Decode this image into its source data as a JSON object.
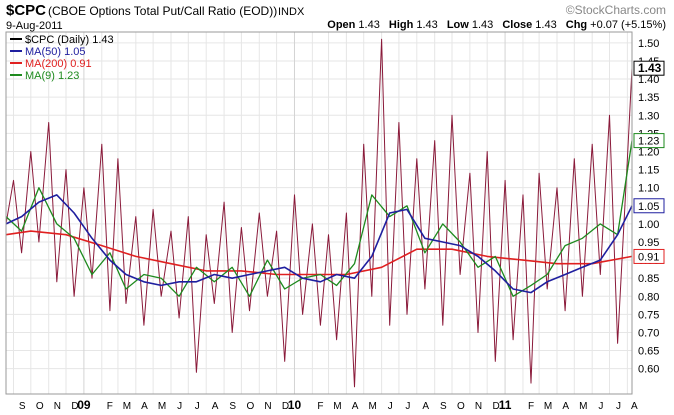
{
  "header": {
    "symbol": "$CPC",
    "description": "(CBOE Options Total Put/Call Ratio (EOD))",
    "exchange": "INDX",
    "date": "9-Aug-2011",
    "watermark": "©StockCharts.com",
    "quote": {
      "open_label": "Open",
      "open": "1.43",
      "high_label": "High",
      "high": "1.43",
      "low_label": "Low",
      "low": "1.43",
      "close_label": "Close",
      "close": "1.43",
      "chg_label": "Chg",
      "chg": "+0.07 (+5.15%)"
    }
  },
  "legend": [
    {
      "text": "$CPC (Daily) 1.43",
      "color": "#000000"
    },
    {
      "text": "MA(50) 1.05",
      "color": "#1f1f9f"
    },
    {
      "text": "MA(200) 0.91",
      "color": "#e02020"
    },
    {
      "text": "MA(9) 1.23",
      "color": "#1e8a1e"
    }
  ],
  "colors": {
    "daily": "#8a1a3a",
    "ma50": "#1f1f9f",
    "ma200": "#e02020",
    "ma9": "#1e8a1e",
    "grid": "#e6e6e6",
    "frame": "#9a9a9a"
  },
  "chart_data": {
    "type": "line",
    "ylim": [
      0.53,
      1.53
    ],
    "yticks": [
      "0.60",
      "0.65",
      "0.70",
      "0.75",
      "0.80",
      "0.85",
      "0.90",
      "0.95",
      "1.00",
      "1.05",
      "1.10",
      "1.15",
      "1.20",
      "1.25",
      "1.30",
      "1.35",
      "1.40",
      "1.45",
      "1.50"
    ],
    "x_range": [
      "2008-08-19",
      "2011-08-09"
    ],
    "x_labels": [
      {
        "label": "S",
        "date": "2008-09-01"
      },
      {
        "label": "O",
        "date": "2008-10-01"
      },
      {
        "label": "N",
        "date": "2008-11-01"
      },
      {
        "label": "D",
        "date": "2008-12-01"
      },
      {
        "label": "09",
        "date": "2009-01-01"
      },
      {
        "label": "F",
        "date": "2009-02-01"
      },
      {
        "label": "M",
        "date": "2009-03-01"
      },
      {
        "label": "A",
        "date": "2009-04-01"
      },
      {
        "label": "M",
        "date": "2009-05-01"
      },
      {
        "label": "J",
        "date": "2009-06-01"
      },
      {
        "label": "J",
        "date": "2009-07-01"
      },
      {
        "label": "A",
        "date": "2009-08-01"
      },
      {
        "label": "S",
        "date": "2009-09-01"
      },
      {
        "label": "O",
        "date": "2009-10-01"
      },
      {
        "label": "N",
        "date": "2009-11-01"
      },
      {
        "label": "D",
        "date": "2009-12-01"
      },
      {
        "label": "10",
        "date": "2010-01-01"
      },
      {
        "label": "F",
        "date": "2010-02-01"
      },
      {
        "label": "M",
        "date": "2010-03-01"
      },
      {
        "label": "A",
        "date": "2010-04-01"
      },
      {
        "label": "M",
        "date": "2010-05-01"
      },
      {
        "label": "J",
        "date": "2010-06-01"
      },
      {
        "label": "J",
        "date": "2010-07-01"
      },
      {
        "label": "A",
        "date": "2010-08-01"
      },
      {
        "label": "S",
        "date": "2010-09-01"
      },
      {
        "label": "O",
        "date": "2010-10-01"
      },
      {
        "label": "N",
        "date": "2010-11-01"
      },
      {
        "label": "D",
        "date": "2010-12-01"
      },
      {
        "label": "11",
        "date": "2011-01-01"
      },
      {
        "label": "F",
        "date": "2011-02-01"
      },
      {
        "label": "M",
        "date": "2011-03-01"
      },
      {
        "label": "A",
        "date": "2011-04-01"
      },
      {
        "label": "M",
        "date": "2011-05-01"
      },
      {
        "label": "J",
        "date": "2011-06-01"
      },
      {
        "label": "J",
        "date": "2011-07-01"
      },
      {
        "label": "A",
        "date": "2011-08-01"
      }
    ],
    "badges": [
      {
        "text": "1.43",
        "value": 1.43,
        "style": "bold"
      },
      {
        "text": "1.23",
        "value": 1.23,
        "style": "green"
      },
      {
        "text": "1.05",
        "value": 1.05,
        "style": "blue"
      },
      {
        "text": "0.91",
        "value": 0.91,
        "style": "red"
      }
    ],
    "series": [
      {
        "name": "$CPC (Daily)",
        "key": "daily",
        "x": [
          "2008-08-19",
          "2008-09-01",
          "2008-09-15",
          "2008-10-01",
          "2008-10-15",
          "2008-11-01",
          "2008-11-15",
          "2008-12-01",
          "2008-12-15",
          "2009-01-01",
          "2009-01-15",
          "2009-02-01",
          "2009-02-15",
          "2009-03-01",
          "2009-03-15",
          "2009-04-01",
          "2009-04-15",
          "2009-05-01",
          "2009-05-15",
          "2009-06-01",
          "2009-06-15",
          "2009-07-01",
          "2009-07-15",
          "2009-08-01",
          "2009-08-15",
          "2009-09-01",
          "2009-09-15",
          "2009-10-01",
          "2009-10-15",
          "2009-11-01",
          "2009-11-15",
          "2009-12-01",
          "2009-12-15",
          "2010-01-01",
          "2010-01-15",
          "2010-02-01",
          "2010-02-15",
          "2010-03-01",
          "2010-03-15",
          "2010-04-01",
          "2010-04-15",
          "2010-05-01",
          "2010-05-15",
          "2010-06-01",
          "2010-06-15",
          "2010-07-01",
          "2010-07-15",
          "2010-08-01",
          "2010-08-15",
          "2010-09-01",
          "2010-09-15",
          "2010-10-01",
          "2010-10-15",
          "2010-11-01",
          "2010-11-15",
          "2010-12-01",
          "2010-12-15",
          "2011-01-01",
          "2011-01-15",
          "2011-02-01",
          "2011-02-15",
          "2011-03-01",
          "2011-03-15",
          "2011-04-01",
          "2011-04-15",
          "2011-05-01",
          "2011-05-15",
          "2011-06-01",
          "2011-06-15",
          "2011-07-01",
          "2011-07-15",
          "2011-08-01",
          "2011-08-09"
        ],
        "values": [
          1.0,
          1.12,
          0.92,
          1.2,
          0.95,
          1.28,
          0.84,
          1.15,
          0.8,
          1.1,
          0.85,
          1.22,
          0.76,
          1.18,
          0.78,
          1.02,
          0.72,
          1.04,
          0.8,
          0.98,
          0.74,
          1.02,
          0.59,
          0.97,
          0.78,
          1.06,
          0.7,
          0.99,
          0.76,
          1.03,
          0.8,
          0.98,
          0.62,
          1.08,
          0.75,
          1.0,
          0.72,
          0.97,
          0.68,
          1.03,
          0.55,
          1.22,
          0.8,
          1.51,
          0.72,
          1.28,
          0.75,
          1.18,
          0.82,
          1.23,
          0.72,
          1.3,
          0.86,
          1.14,
          0.7,
          1.2,
          0.62,
          1.12,
          0.68,
          1.08,
          0.56,
          1.14,
          0.82,
          1.1,
          0.76,
          1.18,
          0.8,
          1.22,
          0.86,
          1.3,
          0.67,
          1.18,
          1.43
        ]
      },
      {
        "name": "MA(50)",
        "key": "ma50",
        "x": [
          "2008-08-19",
          "2008-09-15",
          "2008-10-15",
          "2008-11-15",
          "2008-12-15",
          "2009-01-15",
          "2009-02-15",
          "2009-03-15",
          "2009-04-15",
          "2009-05-15",
          "2009-06-15",
          "2009-07-15",
          "2009-08-15",
          "2009-09-15",
          "2009-10-15",
          "2009-11-15",
          "2009-12-15",
          "2010-01-15",
          "2010-02-15",
          "2010-03-15",
          "2010-04-15",
          "2010-05-15",
          "2010-06-15",
          "2010-07-15",
          "2010-08-15",
          "2010-09-15",
          "2010-10-15",
          "2010-11-15",
          "2010-12-15",
          "2011-01-15",
          "2011-02-15",
          "2011-03-15",
          "2011-04-15",
          "2011-05-15",
          "2011-06-15",
          "2011-07-15",
          "2011-08-09"
        ],
        "values": [
          1.0,
          1.02,
          1.06,
          1.08,
          1.03,
          0.96,
          0.9,
          0.86,
          0.84,
          0.83,
          0.84,
          0.84,
          0.86,
          0.85,
          0.86,
          0.87,
          0.88,
          0.85,
          0.84,
          0.86,
          0.85,
          0.91,
          1.03,
          1.04,
          0.96,
          0.95,
          0.94,
          0.91,
          0.87,
          0.82,
          0.81,
          0.84,
          0.86,
          0.88,
          0.9,
          0.97,
          1.05
        ]
      },
      {
        "name": "MA(200)",
        "key": "ma200",
        "x": [
          "2008-08-19",
          "2008-10-01",
          "2008-12-01",
          "2009-02-01",
          "2009-04-01",
          "2009-06-01",
          "2009-08-01",
          "2009-10-01",
          "2009-12-01",
          "2010-02-01",
          "2010-04-01",
          "2010-06-01",
          "2010-08-01",
          "2010-10-01",
          "2010-12-01",
          "2011-02-01",
          "2011-04-01",
          "2011-06-01",
          "2011-08-09"
        ],
        "values": [
          0.97,
          0.98,
          0.97,
          0.94,
          0.91,
          0.89,
          0.87,
          0.87,
          0.86,
          0.86,
          0.86,
          0.88,
          0.93,
          0.93,
          0.91,
          0.9,
          0.89,
          0.89,
          0.91
        ]
      },
      {
        "name": "MA(9)",
        "key": "ma9",
        "x": [
          "2008-08-19",
          "2008-09-15",
          "2008-10-15",
          "2008-11-15",
          "2008-12-15",
          "2009-01-15",
          "2009-02-15",
          "2009-03-15",
          "2009-04-15",
          "2009-05-15",
          "2009-06-15",
          "2009-07-15",
          "2009-08-15",
          "2009-09-15",
          "2009-10-15",
          "2009-11-15",
          "2009-12-15",
          "2010-01-15",
          "2010-02-15",
          "2010-03-15",
          "2010-04-15",
          "2010-05-15",
          "2010-06-15",
          "2010-07-15",
          "2010-08-15",
          "2010-09-15",
          "2010-10-15",
          "2010-11-15",
          "2010-12-15",
          "2011-01-15",
          "2011-02-15",
          "2011-03-15",
          "2011-04-15",
          "2011-05-15",
          "2011-06-15",
          "2011-07-15",
          "2011-08-09"
        ],
        "values": [
          1.02,
          0.98,
          1.1,
          1.0,
          0.96,
          0.86,
          0.92,
          0.82,
          0.86,
          0.85,
          0.8,
          0.88,
          0.84,
          0.88,
          0.8,
          0.9,
          0.82,
          0.85,
          0.86,
          0.83,
          0.89,
          1.08,
          1.02,
          1.05,
          0.92,
          1.0,
          0.95,
          0.88,
          0.91,
          0.8,
          0.83,
          0.86,
          0.94,
          0.96,
          1.0,
          0.97,
          1.23
        ]
      }
    ]
  }
}
